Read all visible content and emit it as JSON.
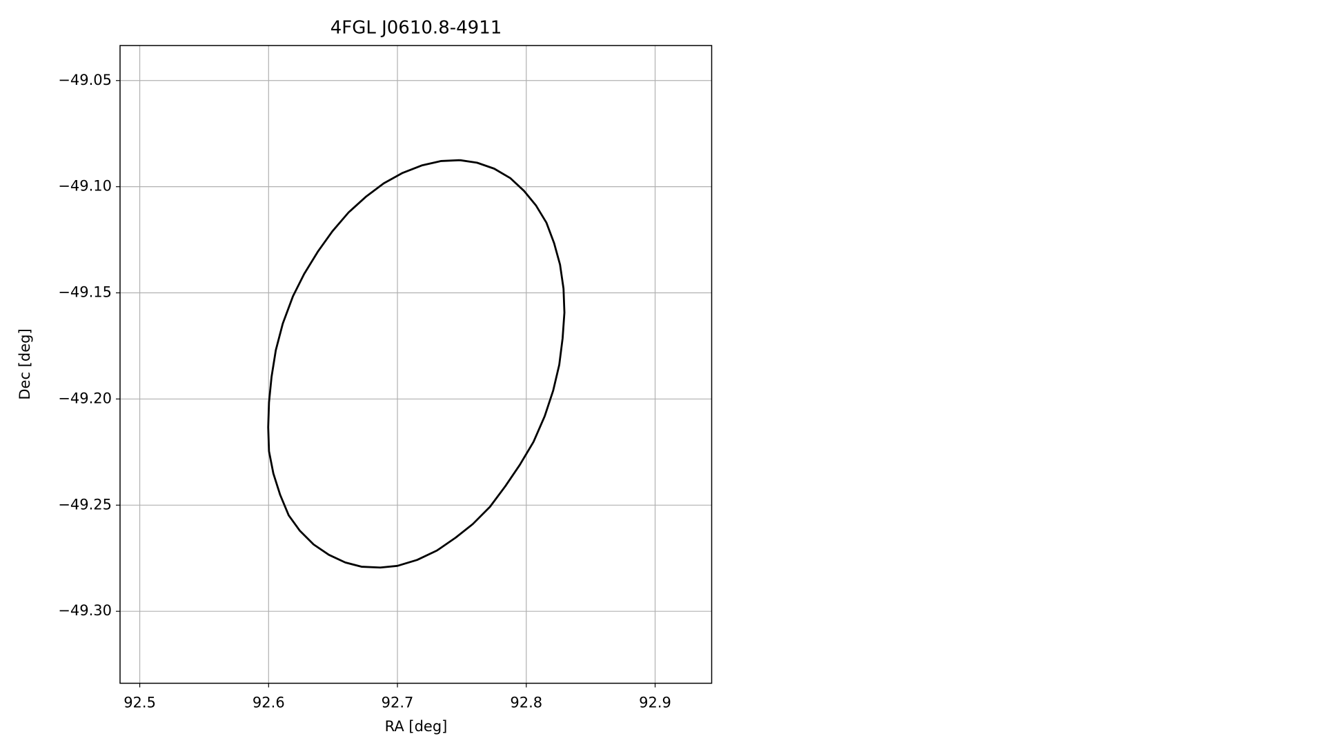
{
  "chart_data": {
    "type": "line",
    "title": "4FGL J0610.8-4911",
    "xlabel": "RA [deg]",
    "ylabel": "Dec [deg]",
    "xlim": [
      92.4847,
      92.9439
    ],
    "ylim": [
      -49.3339,
      -49.0335
    ],
    "xticks": [
      92.5,
      92.6,
      92.7,
      92.8,
      92.9
    ],
    "yticks": [
      {
        "value": -49.05,
        "label": "−49.05"
      },
      {
        "value": -49.1,
        "label": "−49.10"
      },
      {
        "value": -49.15,
        "label": "−49.15"
      },
      {
        "value": -49.2,
        "label": "−49.20"
      },
      {
        "value": -49.25,
        "label": "−49.25"
      },
      {
        "value": -49.3,
        "label": "−49.30"
      }
    ],
    "grid": true,
    "series": [
      {
        "color": "#000000",
        "x": [
          92.7485,
          92.7618,
          92.7751,
          92.7877,
          92.7983,
          92.8076,
          92.8156,
          92.8216,
          92.8262,
          92.8289,
          92.8296,
          92.8282,
          92.8256,
          92.8209,
          92.8143,
          92.8056,
          92.795,
          92.7837,
          92.7718,
          92.7585,
          92.7452,
          92.7306,
          92.7153,
          92.7,
          92.6867,
          92.6721,
          92.6595,
          92.6468,
          92.6349,
          92.6243,
          92.6156,
          92.609,
          92.6037,
          92.6003,
          92.5997,
          92.6003,
          92.6023,
          92.6056,
          92.611,
          92.6189,
          92.6276,
          92.6382,
          92.6495,
          92.6621,
          92.6754,
          92.6894,
          92.704,
          92.7193,
          92.7339,
          92.7485
        ],
        "values": [
          -49.0875,
          -49.0887,
          -49.0915,
          -49.096,
          -49.102,
          -49.1089,
          -49.1169,
          -49.1266,
          -49.1367,
          -49.148,
          -49.1593,
          -49.1714,
          -49.1839,
          -49.196,
          -49.2081,
          -49.2202,
          -49.231,
          -49.2411,
          -49.2508,
          -49.2589,
          -49.2653,
          -49.2714,
          -49.2758,
          -49.2786,
          -49.2794,
          -49.279,
          -49.277,
          -49.2734,
          -49.2685,
          -49.2621,
          -49.2548,
          -49.2452,
          -49.2351,
          -49.2246,
          -49.2133,
          -49.2016,
          -49.1895,
          -49.177,
          -49.1645,
          -49.1516,
          -49.1411,
          -49.1306,
          -49.121,
          -49.1121,
          -49.1048,
          -49.0984,
          -49.0935,
          -49.0899,
          -49.0879,
          -49.0875
        ]
      }
    ]
  }
}
